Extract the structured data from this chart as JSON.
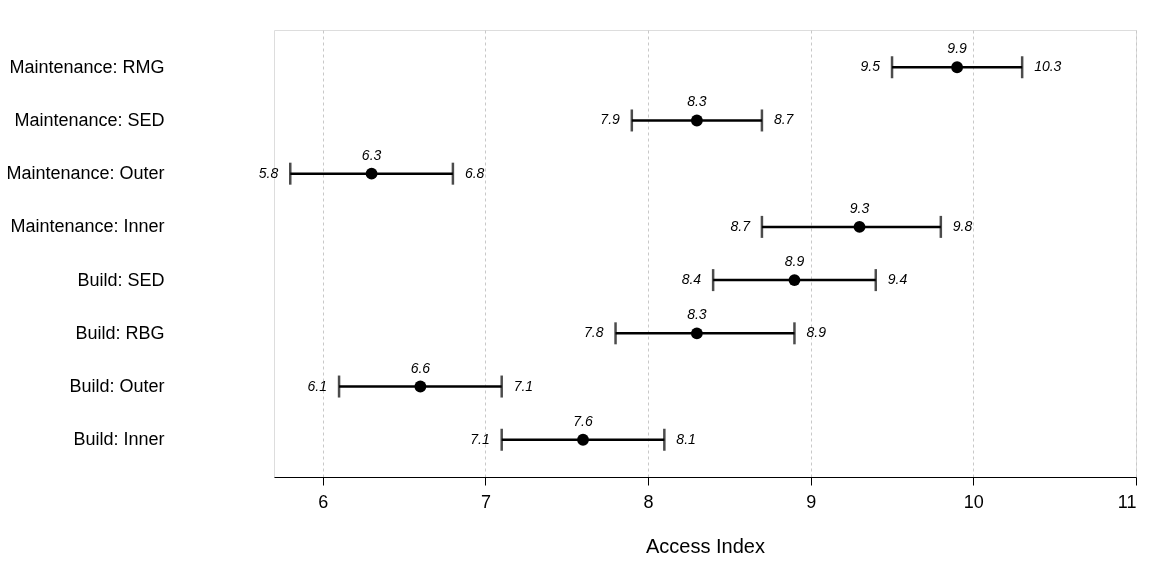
{
  "chart_data": {
    "type": "scatter",
    "orientation": "horizontal",
    "xlabel": "Access Index",
    "categories": [
      "Maintenance: RMG",
      "Maintenance: SED",
      "Maintenance: Outer",
      "Maintenance: Inner",
      "Build: SED",
      "Build: RBG",
      "Build: Outer",
      "Build: Inner"
    ],
    "values": [
      9.9,
      8.3,
      6.3,
      9.3,
      8.9,
      8.3,
      6.6,
      7.6
    ],
    "errors": [
      [
        9.5,
        10.3
      ],
      [
        7.9,
        8.7
      ],
      [
        5.8,
        6.8
      ],
      [
        8.7,
        9.8
      ],
      [
        8.4,
        9.4
      ],
      [
        7.8,
        8.9
      ],
      [
        6.1,
        7.1
      ],
      [
        7.1,
        8.1
      ]
    ],
    "annotations": [
      {
        "text": "9.5",
        "x": 9.5,
        "y": "Maintenance: RMG"
      },
      {
        "text": "10.3",
        "x": 10.3,
        "y": "Maintenance: RMG"
      },
      {
        "text": "7.9",
        "x": 7.9,
        "y": "Maintenance: SED"
      },
      {
        "text": "8.7",
        "x": 8.7,
        "y": "Maintenance: SED"
      },
      {
        "text": "5.8",
        "x": 5.8,
        "y": "Maintenance: Outer"
      },
      {
        "text": "6.8",
        "x": 6.8,
        "y": "Maintenance: Outer"
      },
      {
        "text": "8.7",
        "x": 8.7,
        "y": "Maintenance: Inner"
      },
      {
        "text": "9.8",
        "x": 9.8,
        "y": "Maintenance: Inner"
      },
      {
        "text": "8.4",
        "x": 8.4,
        "y": "Build: SED"
      },
      {
        "text": "9.4",
        "x": 9.4,
        "y": "Build: SED"
      },
      {
        "text": "7.8",
        "x": 7.8,
        "y": "Build: RBG"
      },
      {
        "text": "8.9",
        "x": 8.9,
        "y": "Build: RBG"
      },
      {
        "text": "6.1",
        "x": 6.1,
        "y": "Build: Outer"
      },
      {
        "text": "7.1",
        "x": 7.1,
        "y": "Build: Outer"
      },
      {
        "text": "7.1",
        "x": 7.1,
        "y": "Build: Inner"
      },
      {
        "text": "8.1",
        "x": 8.1,
        "y": "Build: Inner"
      }
    ],
    "color": "#000000",
    "marker": "circle",
    "data_labels": true,
    "xlim": [
      5.7,
      11
    ],
    "xticks": [
      6,
      7,
      8,
      9,
      10,
      11
    ],
    "grid": "x"
  }
}
